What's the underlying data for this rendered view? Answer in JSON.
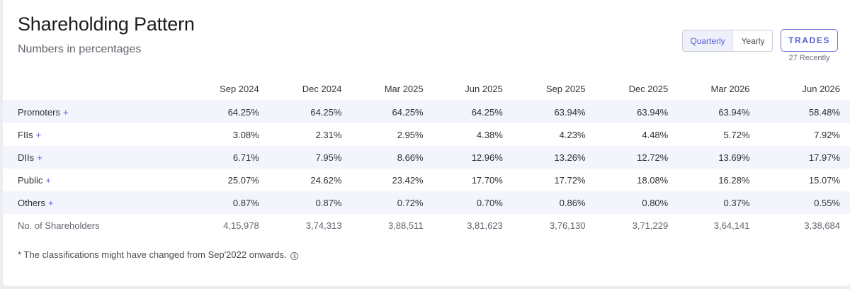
{
  "header": {
    "title": "Shareholding Pattern",
    "subtitle": "Numbers in percentages"
  },
  "period_toggle": {
    "options": [
      "Quarterly",
      "Yearly"
    ],
    "selected": "Quarterly"
  },
  "trades": {
    "label": "TRADES",
    "sub_label": "27 Recently"
  },
  "table": {
    "columns": [
      "Sep 2024",
      "Dec 2024",
      "Mar 2025",
      "Jun 2025",
      "Sep 2025",
      "Dec 2025",
      "Mar 2026",
      "Jun 2026"
    ],
    "rows": [
      {
        "label": "Promoters",
        "expand": "+",
        "values": [
          "64.25%",
          "64.25%",
          "64.25%",
          "64.25%",
          "63.94%",
          "63.94%",
          "63.94%",
          "58.48%"
        ]
      },
      {
        "label": "FIIs",
        "expand": "+",
        "values": [
          "3.08%",
          "2.31%",
          "2.95%",
          "4.38%",
          "4.23%",
          "4.48%",
          "5.72%",
          "7.92%"
        ]
      },
      {
        "label": "DIIs",
        "expand": "+",
        "values": [
          "6.71%",
          "7.95%",
          "8.66%",
          "12.96%",
          "13.26%",
          "12.72%",
          "13.69%",
          "17.97%"
        ]
      },
      {
        "label": "Public",
        "expand": "+",
        "values": [
          "25.07%",
          "24.62%",
          "23.42%",
          "17.70%",
          "17.72%",
          "18.08%",
          "16.28%",
          "15.07%"
        ]
      },
      {
        "label": "Others",
        "expand": "+",
        "values": [
          "0.87%",
          "0.87%",
          "0.72%",
          "0.70%",
          "0.86%",
          "0.80%",
          "0.37%",
          "0.55%"
        ]
      },
      {
        "label": "No. of Shareholders",
        "expand": "",
        "values": [
          "4,15,978",
          "3,74,313",
          "3,88,511",
          "3,81,623",
          "3,76,130",
          "3,71,229",
          "3,64,141",
          "3,38,684"
        ]
      }
    ]
  },
  "footnote": {
    "text": "* The classifications might have changed from Sep'2022 onwards.",
    "icon": "info-icon"
  },
  "colors": {
    "accent": "#5b5fd8",
    "row_shade": "#f4f5fc"
  }
}
